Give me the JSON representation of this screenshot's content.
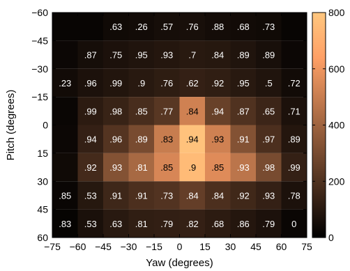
{
  "chart_data": {
    "type": "heatmap",
    "xlabel": "Yaw (degrees)",
    "ylabel": "Pitch (degrees)",
    "x_ticks": [
      -75,
      -60,
      -45,
      -30,
      -15,
      0,
      15,
      30,
      45,
      60,
      75
    ],
    "x_tick_labels": [
      "−75",
      "−60",
      "−45",
      "−30",
      "−15",
      "0",
      "15",
      "30",
      "45",
      "60",
      "75"
    ],
    "y_ticks": [
      -60,
      -45,
      -30,
      -15,
      0,
      15,
      30,
      45,
      60
    ],
    "y_tick_labels": [
      "−60",
      "−45",
      "−30",
      "−15",
      "0",
      "15",
      "30",
      "45",
      "60"
    ],
    "xlim": [
      -75,
      75
    ],
    "ylim": [
      -60,
      60
    ],
    "y_reversed": true,
    "columns": [
      -67.5,
      -52.5,
      -37.5,
      -22.5,
      -7.5,
      7.5,
      22.5,
      37.5,
      52.5,
      67.5
    ],
    "rows": [
      -52.5,
      -37.5,
      -22.5,
      -7.5,
      7.5,
      22.5,
      37.5,
      52.5
    ],
    "colorbar": {
      "min": 0,
      "max": 800,
      "ticks": [
        0,
        200,
        400,
        600,
        800
      ],
      "tick_labels": [
        "0",
        "200",
        "400",
        "600",
        "800"
      ],
      "colormap": "copper",
      "low_color": "#000000",
      "high_color": "#ffc77f"
    },
    "counts": [
      [
        20,
        20,
        40,
        45,
        55,
        60,
        50,
        45,
        40,
        20
      ],
      [
        30,
        55,
        70,
        80,
        90,
        100,
        95,
        80,
        60,
        30
      ],
      [
        45,
        70,
        85,
        100,
        115,
        130,
        120,
        100,
        80,
        45
      ],
      [
        25,
        110,
        140,
        180,
        220,
        520,
        260,
        200,
        150,
        70
      ],
      [
        30,
        130,
        210,
        300,
        500,
        780,
        520,
        330,
        190,
        90
      ],
      [
        40,
        170,
        330,
        420,
        540,
        750,
        560,
        470,
        300,
        130
      ],
      [
        25,
        95,
        155,
        190,
        205,
        250,
        190,
        160,
        130,
        70
      ],
      [
        15,
        65,
        100,
        120,
        125,
        130,
        110,
        90,
        70,
        25
      ]
    ],
    "labels": [
      [
        "",
        "",
        ".63",
        ".26",
        ".57",
        ".76",
        ".88",
        ".68",
        ".73",
        ""
      ],
      [
        "",
        ".87",
        ".75",
        ".95",
        ".93",
        ".7",
        ".84",
        ".89",
        ".89",
        ""
      ],
      [
        ".23",
        ".96",
        ".99",
        ".9",
        ".76",
        ".62",
        ".92",
        ".95",
        ".5",
        ".72"
      ],
      [
        "",
        ".99",
        ".98",
        ".85",
        ".77",
        ".84",
        ".94",
        ".87",
        ".65",
        ".71"
      ],
      [
        "",
        ".94",
        ".96",
        ".89",
        ".83",
        ".94",
        ".93",
        ".91",
        ".97",
        ".89"
      ],
      [
        "",
        ".92",
        ".93",
        ".81",
        ".85",
        ".9",
        ".85",
        ".93",
        ".98",
        ".99"
      ],
      [
        ".85",
        ".53",
        ".91",
        ".91",
        ".73",
        ".84",
        ".84",
        ".92",
        ".93",
        ".78"
      ],
      [
        ".83",
        ".53",
        ".63",
        ".81",
        ".79",
        ".82",
        ".68",
        ".86",
        ".79",
        "0"
      ]
    ]
  }
}
